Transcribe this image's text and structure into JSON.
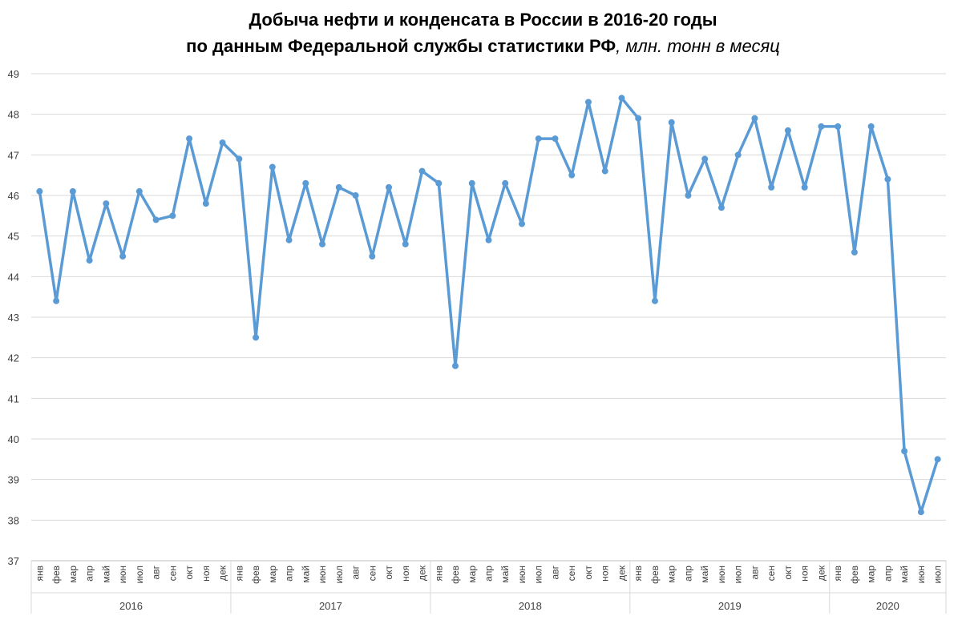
{
  "chart_data": {
    "type": "line",
    "title": "Добыча нефти и конденсата в России в 2016-20 годы",
    "title_line2_bold": "по данным Федеральной службы статистики РФ",
    "title_line2_italic": ", млн. тонн в месяц",
    "ylim": [
      37,
      49
    ],
    "yticks": [
      37,
      38,
      39,
      40,
      41,
      42,
      43,
      44,
      45,
      46,
      47,
      48,
      49
    ],
    "grid": true,
    "color": "#5b9bd5",
    "years": [
      {
        "label": "2016",
        "months": 12
      },
      {
        "label": "2017",
        "months": 12
      },
      {
        "label": "2018",
        "months": 12
      },
      {
        "label": "2019",
        "months": 12
      },
      {
        "label": "2020",
        "months": 7
      }
    ],
    "month_labels": [
      "янв",
      "фев",
      "мар",
      "апр",
      "май",
      "июн",
      "июл",
      "авг",
      "сен",
      "окт",
      "ноя",
      "дек"
    ],
    "series": [
      {
        "values": [
          46.1,
          43.4,
          46.1,
          44.4,
          45.8,
          44.5,
          46.1,
          45.4,
          45.5,
          47.4,
          45.8,
          47.3,
          46.9,
          42.5,
          46.7,
          44.9,
          46.3,
          44.8,
          46.2,
          46.0,
          44.5,
          46.2,
          44.8,
          46.6,
          46.3,
          41.8,
          46.3,
          44.9,
          46.3,
          45.3,
          47.4,
          47.4,
          46.5,
          48.3,
          46.6,
          48.4,
          47.9,
          43.4,
          47.8,
          46.0,
          46.9,
          45.7,
          47.0,
          47.9,
          46.2,
          47.6,
          46.2,
          47.7,
          47.7,
          44.6,
          47.7,
          46.4,
          39.7,
          38.2,
          39.5
        ]
      }
    ]
  }
}
